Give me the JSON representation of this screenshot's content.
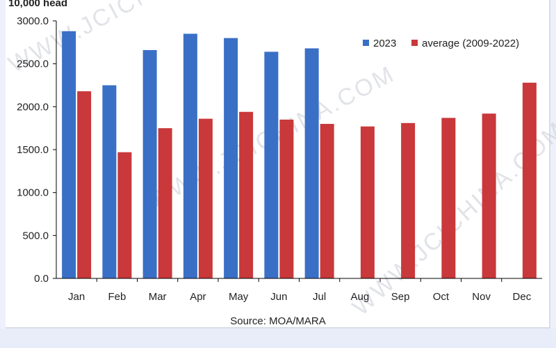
{
  "chart_data": {
    "type": "bar",
    "title": "",
    "xlabel": "",
    "ylabel": "10,000 head",
    "ylim": [
      0,
      3000
    ],
    "yticks": [
      "0.0",
      "500.0",
      "1000.0",
      "1500.0",
      "2000.0",
      "2500.0",
      "3000.0"
    ],
    "categories": [
      "Jan",
      "Feb",
      "Mar",
      "Apr",
      "May",
      "Jun",
      "Jul",
      "Aug",
      "Sep",
      "Oct",
      "Nov",
      "Dec"
    ],
    "series": [
      {
        "name": "2023",
        "color": "#3a6fc6",
        "values": [
          2880,
          2250,
          2660,
          2850,
          2800,
          2640,
          2680,
          null,
          null,
          null,
          null,
          null
        ]
      },
      {
        "name": "average (2009-2022)",
        "color": "#c9383a",
        "values": [
          2180,
          1470,
          1750,
          1860,
          1940,
          1850,
          1800,
          1770,
          1810,
          1870,
          1920,
          2280
        ]
      }
    ],
    "grid": false,
    "legend": "top-right",
    "source": "Source: MOA/MARA",
    "watermark": "WWW.JCICHINA.COM"
  }
}
